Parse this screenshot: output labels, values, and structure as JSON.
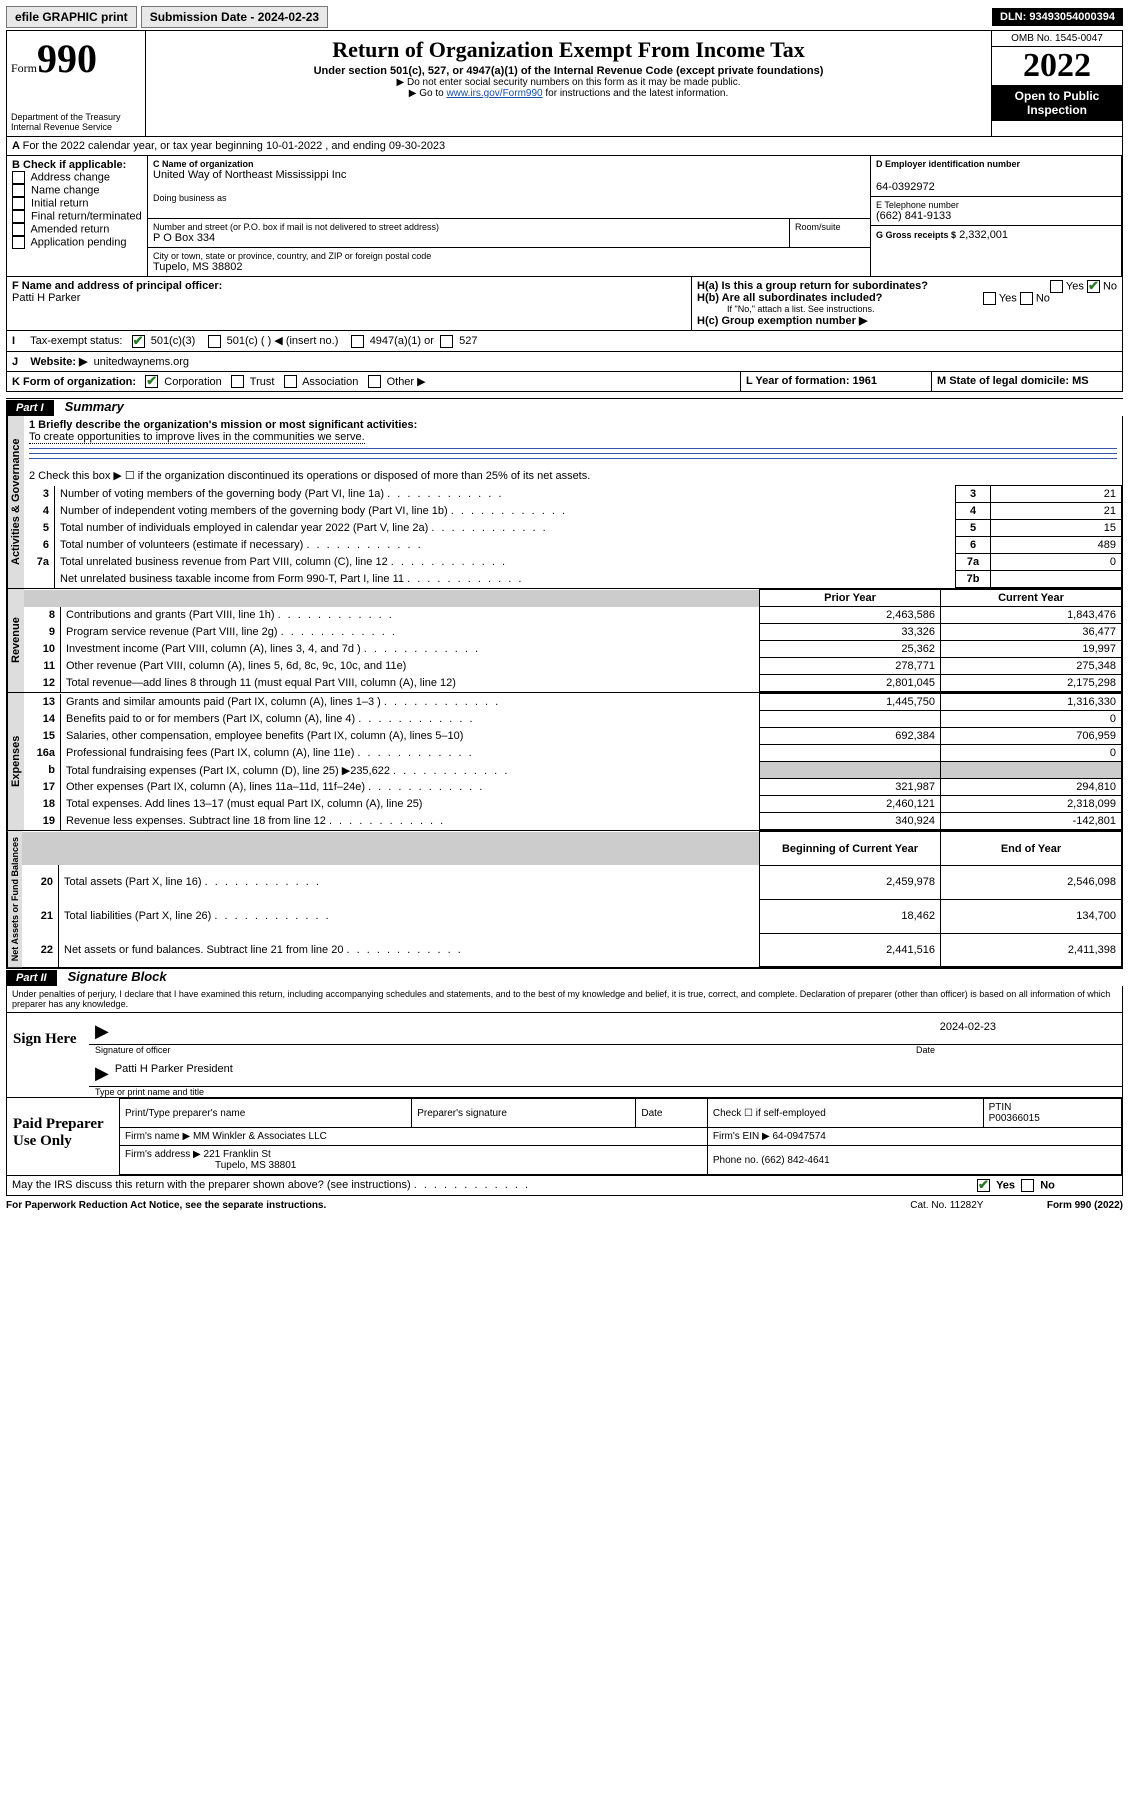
{
  "topbar": {
    "efile": "efile GRAPHIC print",
    "submission_label": "Submission Date - 2024-02-23",
    "dln": "DLN: 93493054000394"
  },
  "header": {
    "form_word": "Form",
    "form_num": "990",
    "dept": "Department of the Treasury",
    "irs": "Internal Revenue Service",
    "title": "Return of Organization Exempt From Income Tax",
    "sub": "Under section 501(c), 527, or 4947(a)(1) of the Internal Revenue Code (except private foundations)",
    "note1": "▶ Do not enter social security numbers on this form as it may be made public.",
    "note2_pre": "▶ Go to ",
    "note2_link": "www.irs.gov/Form990",
    "note2_post": " for instructions and the latest information.",
    "omb": "OMB No. 1545-0047",
    "year": "2022",
    "inspect": "Open to Public Inspection"
  },
  "sectionA": {
    "a_line": "For the 2022 calendar year, or tax year beginning 10-01-2022   , and ending 09-30-2023",
    "b_label": "B Check if applicable:",
    "b_opts": [
      "Address change",
      "Name change",
      "Initial return",
      "Final return/terminated",
      "Amended return",
      "Application pending"
    ],
    "c_name_label": "C Name of organization",
    "c_name": "United Way of Northeast Mississippi Inc",
    "dba_label": "Doing business as",
    "addr_label": "Number and street (or P.O. box if mail is not delivered to street address)",
    "room_label": "Room/suite",
    "addr": "P O Box 334",
    "city_label": "City or town, state or province, country, and ZIP or foreign postal code",
    "city": "Tupelo, MS  38802",
    "d_label": "D Employer identification number",
    "d_val": "64-0392972",
    "e_label": "E Telephone number",
    "e_val": "(662) 841-9133",
    "g_label": "G Gross receipts $",
    "g_val": "2,332,001",
    "f_label": "F  Name and address of principal officer:",
    "f_val": "Patti H Parker",
    "ha_label": "H(a)  Is this a group return for subordinates?",
    "hb_label": "H(b)  Are all subordinates included?",
    "hb_note": "If \"No,\" attach a list. See instructions.",
    "hc_label": "H(c)  Group exemption number ▶",
    "i_label": "Tax-exempt status:",
    "i_501c3": "501(c)(3)",
    "i_501c": "501(c) (   ) ◀ (insert no.)",
    "i_4947": "4947(a)(1) or",
    "i_527": "527",
    "j_label": "Website: ▶",
    "j_val": "unitedwaynems.org",
    "k_label": "K Form of organization:",
    "k_opts": [
      "Corporation",
      "Trust",
      "Association",
      "Other ▶"
    ],
    "l_label": "L Year of formation: 1961",
    "m_label": "M State of legal domicile: MS",
    "yes": "Yes",
    "no": "No"
  },
  "part1": {
    "header": "Part I",
    "title": "Summary",
    "tab1": "Activities & Governance",
    "tab2": "Revenue",
    "tab3": "Expenses",
    "tab4": "Net Assets or Fund Balances",
    "line1_label": "1  Briefly describe the organization's mission or most significant activities:",
    "line1_val": "To create opportunities to improve lives in the communities we serve.",
    "line2": "2   Check this box ▶ ☐  if the organization discontinued its operations or disposed of more than 25% of its net assets.",
    "rows_gov": [
      {
        "n": "3",
        "label": "Number of voting members of the governing body (Part VI, line 1a)",
        "box": "3",
        "val": "21"
      },
      {
        "n": "4",
        "label": "Number of independent voting members of the governing body (Part VI, line 1b)",
        "box": "4",
        "val": "21"
      },
      {
        "n": "5",
        "label": "Total number of individuals employed in calendar year 2022 (Part V, line 2a)",
        "box": "5",
        "val": "15"
      },
      {
        "n": "6",
        "label": "Total number of volunteers (estimate if necessary)",
        "box": "6",
        "val": "489"
      },
      {
        "n": "7a",
        "label": "Total unrelated business revenue from Part VIII, column (C), line 12",
        "box": "7a",
        "val": "0"
      },
      {
        "n": " ",
        "label": "Net unrelated business taxable income from Form 990-T, Part I, line 11",
        "box": "7b",
        "val": ""
      }
    ],
    "col_prior": "Prior Year",
    "col_current": "Current Year",
    "rows_rev": [
      {
        "n": "8",
        "label": "Contributions and grants (Part VIII, line 1h)",
        "p": "2,463,586",
        "c": "1,843,476"
      },
      {
        "n": "9",
        "label": "Program service revenue (Part VIII, line 2g)",
        "p": "33,326",
        "c": "36,477"
      },
      {
        "n": "10",
        "label": "Investment income (Part VIII, column (A), lines 3, 4, and 7d )",
        "p": "25,362",
        "c": "19,997"
      },
      {
        "n": "11",
        "label": "Other revenue (Part VIII, column (A), lines 5, 6d, 8c, 9c, 10c, and 11e)",
        "p": "278,771",
        "c": "275,348"
      },
      {
        "n": "12",
        "label": "Total revenue—add lines 8 through 11 (must equal Part VIII, column (A), line 12)",
        "p": "2,801,045",
        "c": "2,175,298"
      }
    ],
    "rows_exp": [
      {
        "n": "13",
        "label": "Grants and similar amounts paid (Part IX, column (A), lines 1–3 )",
        "p": "1,445,750",
        "c": "1,316,330"
      },
      {
        "n": "14",
        "label": "Benefits paid to or for members (Part IX, column (A), line 4)",
        "p": "",
        "c": "0"
      },
      {
        "n": "15",
        "label": "Salaries, other compensation, employee benefits (Part IX, column (A), lines 5–10)",
        "p": "692,384",
        "c": "706,959"
      },
      {
        "n": "16a",
        "label": "Professional fundraising fees (Part IX, column (A), line 11e)",
        "p": "",
        "c": "0"
      },
      {
        "n": "b",
        "label": "Total fundraising expenses (Part IX, column (D), line 25) ▶235,622",
        "p": "shade",
        "c": "shade"
      },
      {
        "n": "17",
        "label": "Other expenses (Part IX, column (A), lines 11a–11d, 11f–24e)",
        "p": "321,987",
        "c": "294,810"
      },
      {
        "n": "18",
        "label": "Total expenses. Add lines 13–17 (must equal Part IX, column (A), line 25)",
        "p": "2,460,121",
        "c": "2,318,099"
      },
      {
        "n": "19",
        "label": "Revenue less expenses. Subtract line 18 from line 12",
        "p": "340,924",
        "c": "-142,801"
      }
    ],
    "col_begin": "Beginning of Current Year",
    "col_end": "End of Year",
    "rows_net": [
      {
        "n": "20",
        "label": "Total assets (Part X, line 16)",
        "p": "2,459,978",
        "c": "2,546,098"
      },
      {
        "n": "21",
        "label": "Total liabilities (Part X, line 26)",
        "p": "18,462",
        "c": "134,700"
      },
      {
        "n": "22",
        "label": "Net assets or fund balances. Subtract line 21 from line 20",
        "p": "2,441,516",
        "c": "2,411,398"
      }
    ]
  },
  "part2": {
    "header": "Part II",
    "title": "Signature Block",
    "penalty": "Under penalties of perjury, I declare that I have examined this return, including accompanying schedules and statements, and to the best of my knowledge and belief, it is true, correct, and complete. Declaration of preparer (other than officer) is based on all information of which preparer has any knowledge.",
    "sign_here": "Sign Here",
    "sig_officer": "Signature of officer",
    "date_label": "Date",
    "date_val": "2024-02-23",
    "officer_name": "Patti H Parker  President",
    "type_label": "Type or print name and title",
    "paid": "Paid Preparer Use Only",
    "prep_name_label": "Print/Type preparer's name",
    "prep_sig_label": "Preparer's signature",
    "check_self": "Check ☐ if self-employed",
    "ptin_label": "PTIN",
    "ptin": "P00366015",
    "firm_name_label": "Firm's name    ▶",
    "firm_name": "MM Winkler & Associates LLC",
    "firm_ein_label": "Firm's EIN ▶",
    "firm_ein": "64-0947574",
    "firm_addr_label": "Firm's address ▶",
    "firm_addr1": "221 Franklin St",
    "firm_addr2": "Tupelo, MS  38801",
    "phone_label": "Phone no.",
    "phone": "(662) 842-4641",
    "discuss": "May the IRS discuss this return with the preparer shown above? (see instructions)"
  },
  "footer": {
    "left": "For Paperwork Reduction Act Notice, see the separate instructions.",
    "mid": "Cat. No. 11282Y",
    "right_pre": "Form ",
    "right_num": "990",
    "right_post": " (2022)"
  }
}
